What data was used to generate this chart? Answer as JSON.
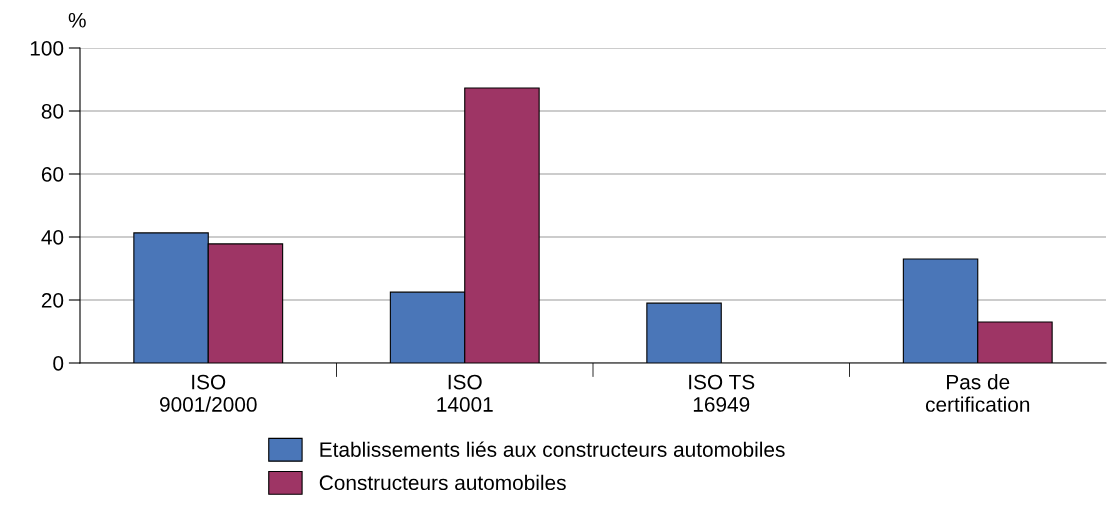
{
  "chart_data": {
    "type": "bar",
    "ylabel": "%",
    "categories": [
      "ISO\n9001/2000",
      "ISO\n14001",
      "ISO TS\n16949",
      "Pas de\ncertification"
    ],
    "series": [
      {
        "name": "Etablissements liés aux constructeurs automobiles",
        "color": "#4a76b8",
        "values": [
          41.3,
          22.5,
          19,
          33
        ]
      },
      {
        "name": "Constructeurs automobiles",
        "color": "#9e3565",
        "values": [
          37.8,
          87.3,
          null,
          13
        ]
      }
    ],
    "ylim": [
      0,
      100
    ],
    "yticks": [
      0,
      20,
      40,
      60,
      80,
      100
    ],
    "grid": "y",
    "legend": "bottom"
  }
}
